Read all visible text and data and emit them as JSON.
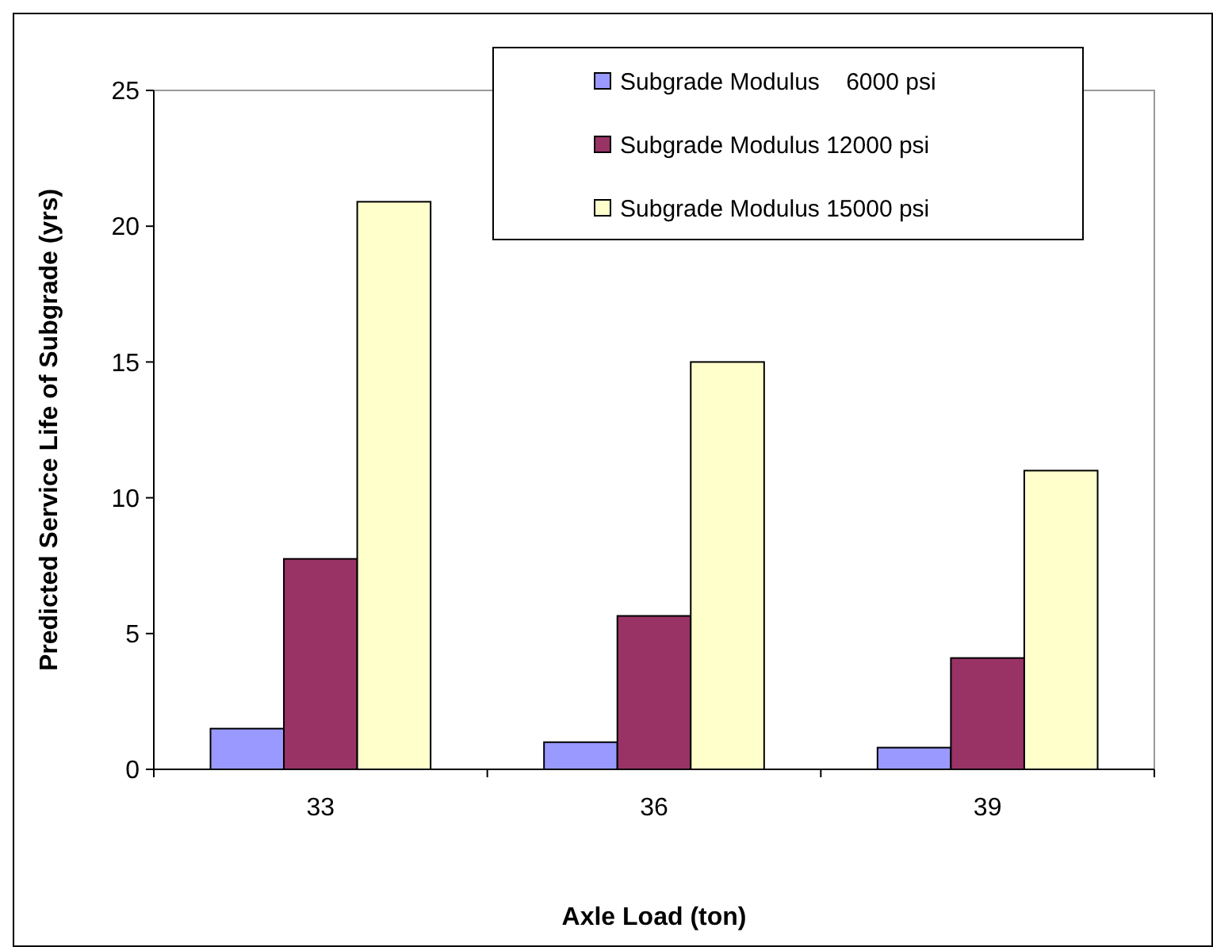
{
  "chart_data": {
    "type": "bar",
    "xlabel": "Axle Load (ton)",
    "ylabel": "Predicted Service Life of Subgrade (yrs)",
    "categories": [
      "33",
      "36",
      "39"
    ],
    "series": [
      {
        "name": "Subgrade Modulus    6000 psi",
        "color": "#9999ff",
        "values": [
          1.5,
          1.0,
          0.8
        ]
      },
      {
        "name": "Subgrade Modulus 12000 psi",
        "color": "#993366",
        "values": [
          7.75,
          5.65,
          4.1
        ]
      },
      {
        "name": "Subgrade Modulus 15000 psi",
        "color": "#ffffcc",
        "values": [
          20.9,
          15.0,
          11.0
        ]
      }
    ],
    "ylim": [
      0,
      25
    ],
    "yticks": [
      0,
      5,
      10,
      15,
      20,
      25
    ],
    "legend": "top",
    "grid": false
  }
}
